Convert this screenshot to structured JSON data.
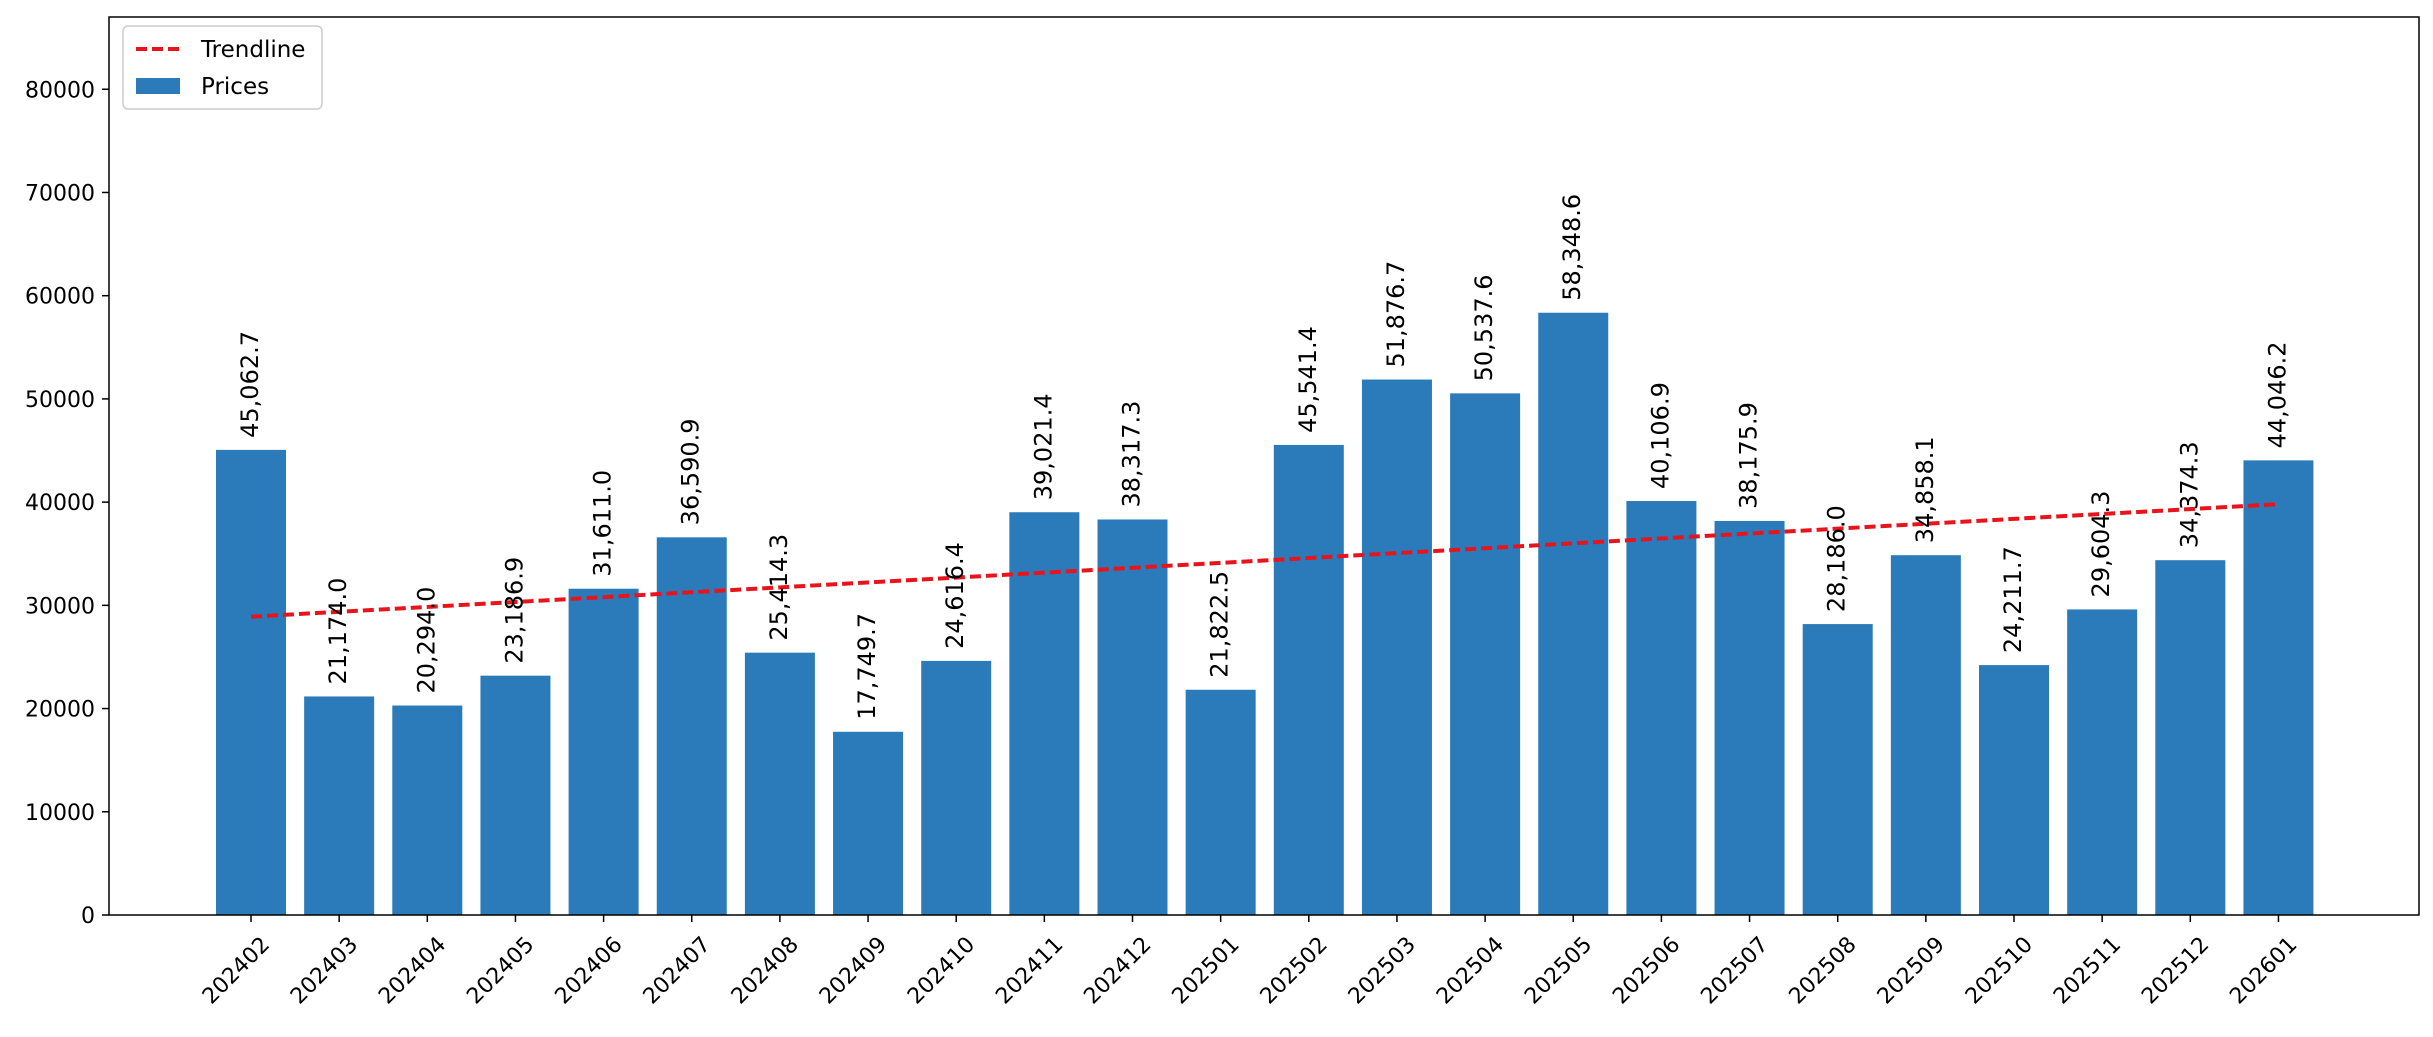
{
  "chart_data": {
    "type": "bar",
    "title": "",
    "xlabel": "",
    "ylabel": "",
    "categories": [
      "202402",
      "202403",
      "202404",
      "202405",
      "202406",
      "202407",
      "202408",
      "202409",
      "202410",
      "202411",
      "202412",
      "202501",
      "202502",
      "202503",
      "202504",
      "202505",
      "202506",
      "202507",
      "202508",
      "202509",
      "202510",
      "202511",
      "202512",
      "202601"
    ],
    "series": [
      {
        "name": "Prices",
        "kind": "bar",
        "color": "#2b7bba",
        "values": [
          45062.7,
          21174.0,
          20294.0,
          23186.9,
          31611.0,
          36590.9,
          25414.3,
          17749.7,
          24616.4,
          39021.4,
          38317.3,
          21822.5,
          45541.4,
          51876.7,
          50537.6,
          58348.6,
          40106.9,
          38175.9,
          28186.0,
          34858.1,
          24211.7,
          29604.3,
          34374.3,
          44046.2
        ],
        "labels": [
          "45,062.7",
          "21,174.0",
          "20,294.0",
          "23,186.9",
          "31,611.0",
          "36,590.9",
          "25,414.3",
          "17,749.7",
          "24,616.4",
          "39,021.4",
          "38,317.3",
          "21,822.5",
          "45,541.4",
          "51,876.7",
          "50,537.6",
          "58,348.6",
          "40,106.9",
          "38,175.9",
          "28,186.0",
          "34,858.1",
          "24,211.7",
          "29,604.3",
          "34,374.3",
          "44,046.2"
        ]
      },
      {
        "name": "Trendline",
        "kind": "line",
        "style": "dashed",
        "color": "#e8141c",
        "start": 28900,
        "end": 39800
      }
    ],
    "ylim": [
      0,
      87000
    ],
    "yticks": [
      0,
      10000,
      20000,
      30000,
      40000,
      50000,
      60000,
      70000,
      80000
    ],
    "ytick_labels": [
      "0",
      "10000",
      "20000",
      "30000",
      "40000",
      "50000",
      "60000",
      "70000",
      "80000"
    ],
    "grid": false,
    "legend": {
      "placement": "top-left",
      "entries": [
        {
          "label": "Trendline",
          "marker": "dashed-line",
          "color": "#e8141c"
        },
        {
          "label": "Prices",
          "marker": "patch",
          "color": "#2b7bba"
        }
      ]
    }
  }
}
